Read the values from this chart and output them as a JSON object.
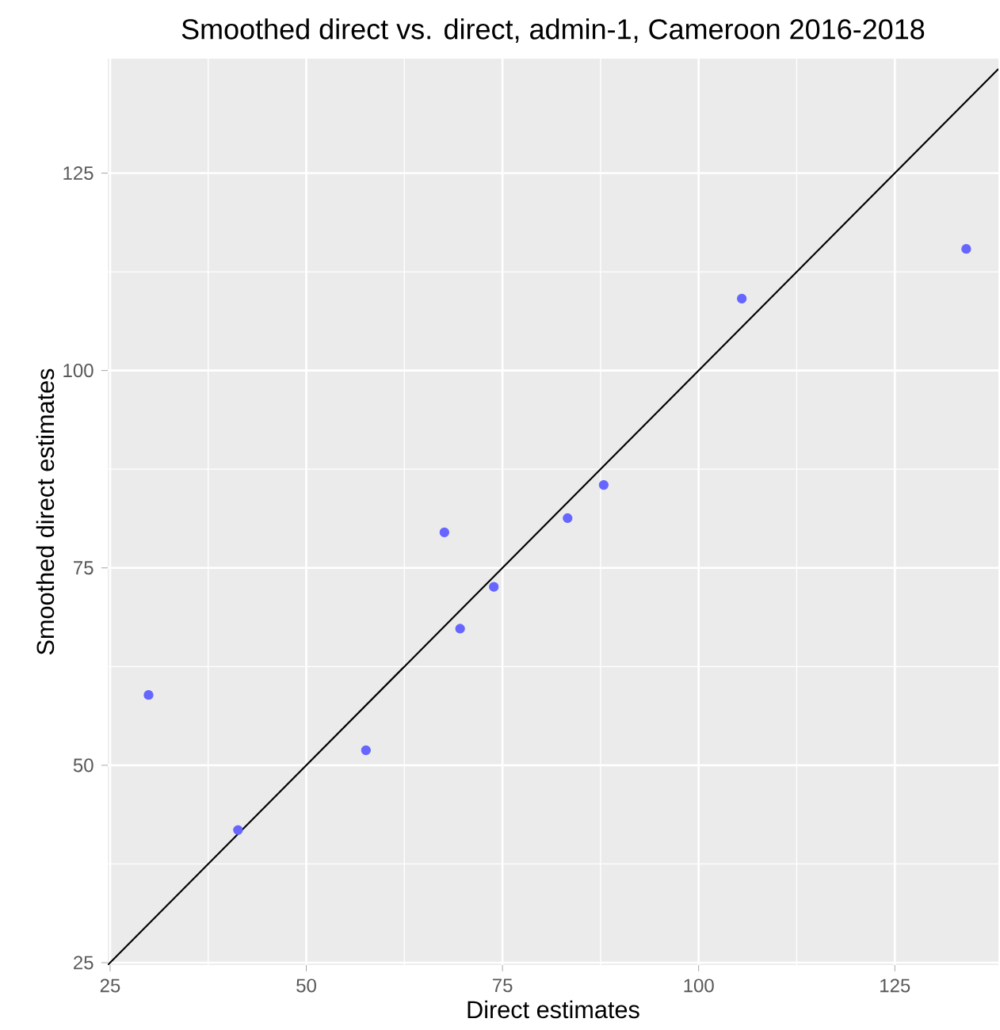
{
  "chart_data": {
    "type": "scatter",
    "title": "Smoothed direct vs. direct, admin-1, Cameroon 2016-2018",
    "xlabel": "Direct estimates",
    "ylabel": "Smoothed direct estimates",
    "xlim": [
      24.7,
      138.2
    ],
    "ylim": [
      24.7,
      139.5
    ],
    "xticks": [
      25,
      50,
      75,
      100,
      125
    ],
    "yticks": [
      25,
      50,
      75,
      100,
      125
    ],
    "grid": true,
    "series": [
      {
        "marker": "circle",
        "color": "#6666ff",
        "x": [
          29.9,
          41.3,
          57.6,
          67.6,
          69.6,
          73.9,
          83.3,
          87.9,
          105.5,
          134.1
        ],
        "values": [
          58.9,
          41.8,
          51.9,
          79.5,
          67.3,
          72.6,
          81.3,
          85.5,
          109.1,
          115.4
        ]
      },
      {
        "type": "line",
        "color": "#000000",
        "line_style": "solid",
        "marker": "none",
        "x": [
          24.7,
          138.2
        ],
        "values": [
          24.7,
          138.2
        ]
      }
    ]
  }
}
